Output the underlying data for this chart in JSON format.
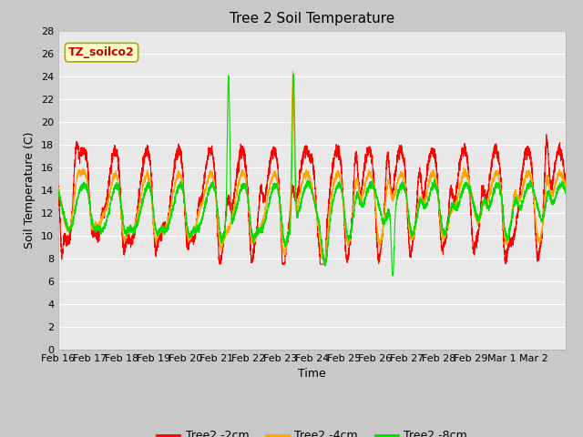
{
  "title": "Tree 2 Soil Temperature",
  "xlabel": "Time",
  "ylabel": "Soil Temperature (C)",
  "ylim": [
    0,
    28
  ],
  "yticks": [
    0,
    2,
    4,
    6,
    8,
    10,
    12,
    14,
    16,
    18,
    20,
    22,
    24,
    26,
    28
  ],
  "xtick_labels": [
    "Feb 16",
    "Feb 17",
    "Feb 18",
    "Feb 19",
    "Feb 20",
    "Feb 21",
    "Feb 22",
    "Feb 23",
    "Feb 24",
    "Feb 25",
    "Feb 26",
    "Feb 27",
    "Feb 28",
    "Feb 29",
    "Mar 1",
    "Mar 2"
  ],
  "legend_labels": [
    "Tree2 -2cm",
    "Tree2 -4cm",
    "Tree2 -8cm"
  ],
  "series_colors": [
    "#ff0000",
    "#ffa500",
    "#00dd00"
  ],
  "annotation_text": "TZ_soilco2",
  "annotation_color": "#cc0000",
  "annotation_bg": "#ffffcc",
  "annotation_border": "#aaaa00",
  "plot_bg_color": "#e8e8e8",
  "grid_color": "#ffffff",
  "title_fontsize": 11,
  "axis_label_fontsize": 9,
  "tick_fontsize": 8
}
